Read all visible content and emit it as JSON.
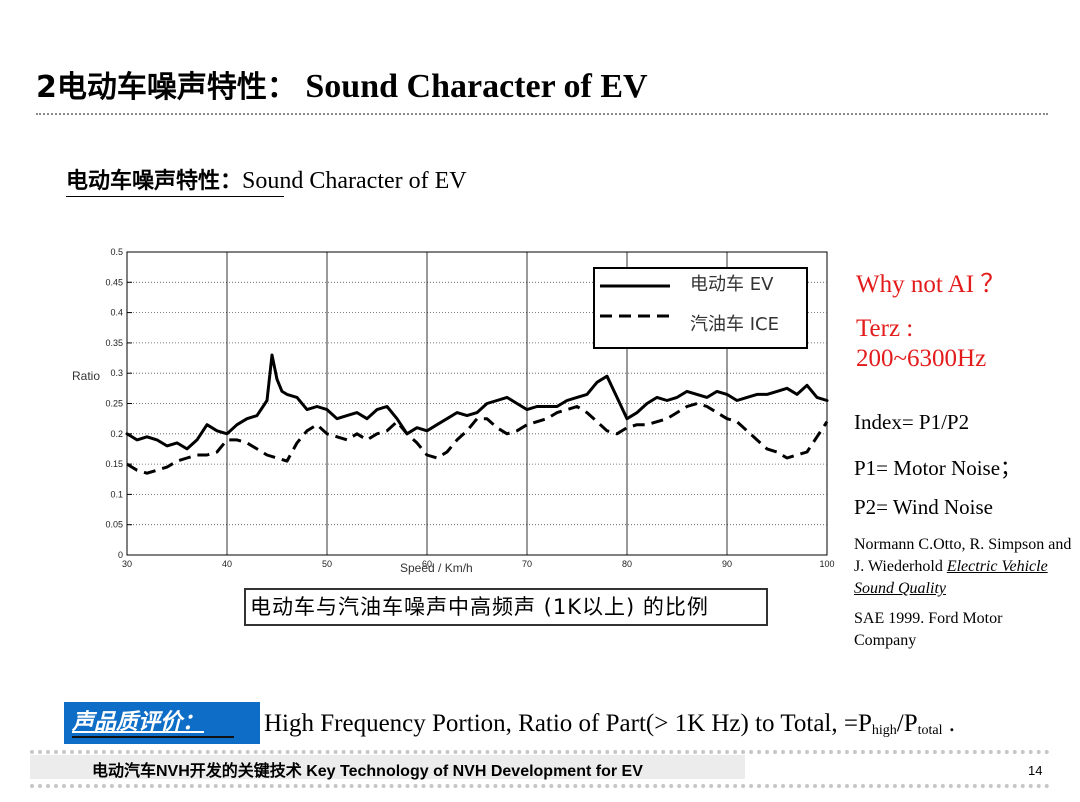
{
  "header": {
    "title_cn": "2电动车噪声特性：",
    "title_en": "Sound Character of  EV"
  },
  "subtitle": {
    "cn": "电动车噪声特性：",
    "en": "Sound Character of  EV"
  },
  "chart_data": {
    "type": "line",
    "xlabel": "Speed  / Km/h",
    "ylabel": "Ratio",
    "xlim": [
      30,
      100
    ],
    "ylim": [
      0,
      0.5
    ],
    "x_ticks": [
      "30",
      "40",
      "50",
      "60",
      "70",
      "80",
      "90",
      "100"
    ],
    "y_ticks": [
      "0",
      "0.05",
      "0.1",
      "0.15",
      "0.2",
      "0.25",
      "0.3",
      "0.35",
      "0.4",
      "0.45",
      "0.5"
    ],
    "grid": true,
    "legend_position": "top-right",
    "series": [
      {
        "name": "电动车 EV",
        "style": "solid",
        "x": [
          30,
          31,
          32,
          33,
          34,
          35,
          36,
          37,
          38,
          39,
          40,
          41,
          42,
          43,
          44,
          44.5,
          45,
          45.5,
          46,
          47,
          48,
          49,
          50,
          51,
          52,
          53,
          54,
          55,
          56,
          57,
          58,
          59,
          60,
          61,
          62,
          63,
          64,
          65,
          66,
          67,
          68,
          69,
          70,
          71,
          72,
          73,
          74,
          75,
          76,
          77,
          78,
          79,
          80,
          81,
          82,
          83,
          84,
          85,
          86,
          87,
          88,
          89,
          90,
          91,
          92,
          93,
          94,
          95,
          96,
          97,
          98,
          99,
          100
        ],
        "y": [
          0.2,
          0.19,
          0.195,
          0.19,
          0.18,
          0.185,
          0.175,
          0.19,
          0.215,
          0.205,
          0.2,
          0.215,
          0.225,
          0.23,
          0.255,
          0.33,
          0.29,
          0.27,
          0.265,
          0.26,
          0.24,
          0.245,
          0.24,
          0.225,
          0.23,
          0.235,
          0.225,
          0.24,
          0.245,
          0.225,
          0.2,
          0.21,
          0.205,
          0.215,
          0.225,
          0.235,
          0.23,
          0.235,
          0.25,
          0.255,
          0.26,
          0.25,
          0.24,
          0.245,
          0.245,
          0.245,
          0.255,
          0.26,
          0.265,
          0.285,
          0.295,
          0.26,
          0.225,
          0.235,
          0.25,
          0.26,
          0.255,
          0.26,
          0.27,
          0.265,
          0.26,
          0.27,
          0.265,
          0.255,
          0.26,
          0.265,
          0.265,
          0.27,
          0.275,
          0.265,
          0.28,
          0.26,
          0.255
        ]
      },
      {
        "name": "汽油车 ICE",
        "style": "dashed",
        "x": [
          30,
          31,
          32,
          33,
          34,
          35,
          36,
          37,
          38,
          39,
          40,
          41,
          42,
          43,
          44,
          45,
          46,
          47,
          48,
          49,
          50,
          51,
          52,
          53,
          54,
          55,
          56,
          57,
          58,
          59,
          60,
          61,
          62,
          63,
          64,
          65,
          66,
          67,
          68,
          69,
          70,
          71,
          72,
          73,
          74,
          75,
          76,
          77,
          78,
          79,
          80,
          81,
          82,
          83,
          84,
          85,
          86,
          87,
          88,
          89,
          90,
          91,
          92,
          93,
          94,
          95,
          96,
          97,
          98,
          99,
          100
        ],
        "y": [
          0.15,
          0.14,
          0.135,
          0.14,
          0.145,
          0.155,
          0.16,
          0.165,
          0.165,
          0.17,
          0.19,
          0.19,
          0.185,
          0.175,
          0.165,
          0.16,
          0.155,
          0.185,
          0.205,
          0.215,
          0.2,
          0.195,
          0.19,
          0.2,
          0.19,
          0.2,
          0.205,
          0.22,
          0.2,
          0.185,
          0.165,
          0.16,
          0.17,
          0.19,
          0.205,
          0.225,
          0.225,
          0.21,
          0.2,
          0.205,
          0.215,
          0.22,
          0.225,
          0.235,
          0.24,
          0.245,
          0.235,
          0.22,
          0.205,
          0.2,
          0.21,
          0.215,
          0.215,
          0.22,
          0.225,
          0.235,
          0.245,
          0.25,
          0.245,
          0.235,
          0.225,
          0.22,
          0.205,
          0.19,
          0.175,
          0.17,
          0.16,
          0.165,
          0.17,
          0.195,
          0.22
        ]
      }
    ]
  },
  "chart_caption": "电动车与汽油车噪声中高频声 (1K以上) 的比例",
  "notes": {
    "why_ai": "Why not AI ？",
    "terz_line1": "Terz :",
    "terz_line2": "200~6300Hz",
    "index": "Index= P1/P2",
    "p1": "P1= Motor Noise；",
    "p2": "P2= Wind Noise",
    "reference_authors": "Normann C.Otto, R. Simpson and J. Wiederhold",
    "reference_title": "Electric Vehicle Sound Quality",
    "sae": "SAE 1999.   Ford Motor Company"
  },
  "sound_quality": {
    "label": "声品质评价：",
    "text_prefix": "High Frequency Portion, Ratio of  Part(> 1K Hz) to Total, =P",
    "sub_high": "high",
    "slash_p": "/P",
    "sub_total": "total",
    "suffix": " ."
  },
  "footer": {
    "text": "电动汽车NVH开发的关键技术  Key Technology of NVH Development for EV",
    "page_number": "14"
  },
  "colors": {
    "accent_red": "#e31b1b",
    "label_blue": "#0d6dc7"
  }
}
